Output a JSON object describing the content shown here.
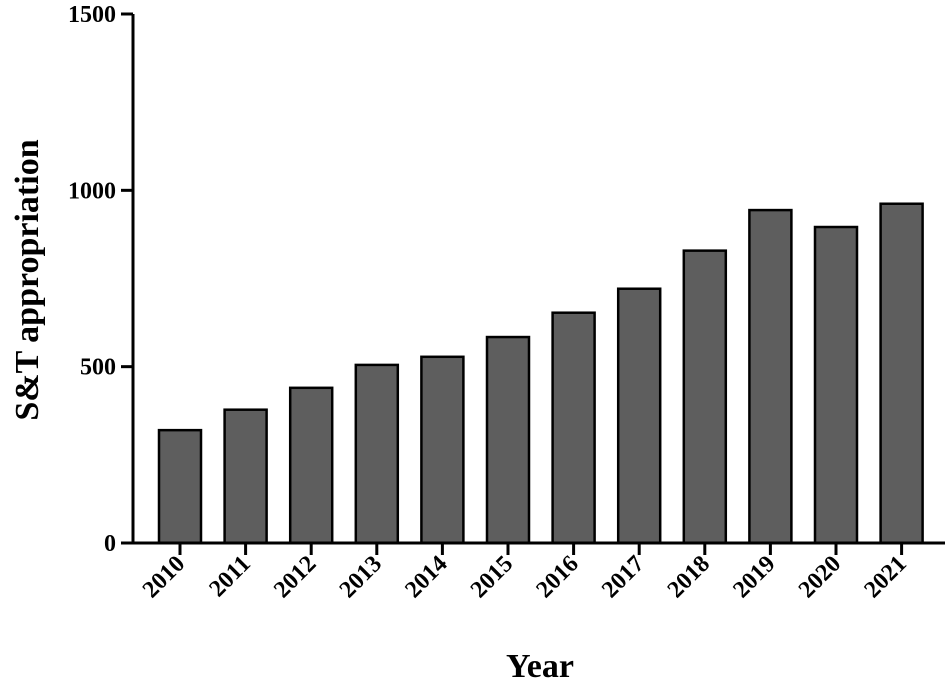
{
  "chart_data": {
    "type": "bar",
    "title": "",
    "xlabel": "Year",
    "ylabel": "S&T appropriation",
    "categories": [
      "2010",
      "2011",
      "2012",
      "2013",
      "2014",
      "2015",
      "2016",
      "2017",
      "2018",
      "2019",
      "2020",
      "2021"
    ],
    "values": [
      320,
      378,
      440,
      505,
      528,
      584,
      653,
      721,
      829,
      944,
      896,
      962
    ],
    "ylim": [
      0,
      1500
    ],
    "yticks": [
      0,
      500,
      1000,
      1500
    ],
    "grid": false,
    "legend": "none",
    "colors": {
      "bar_fill": "#5e5e5e",
      "bar_stroke": "#000000",
      "axis": "#000000"
    }
  }
}
